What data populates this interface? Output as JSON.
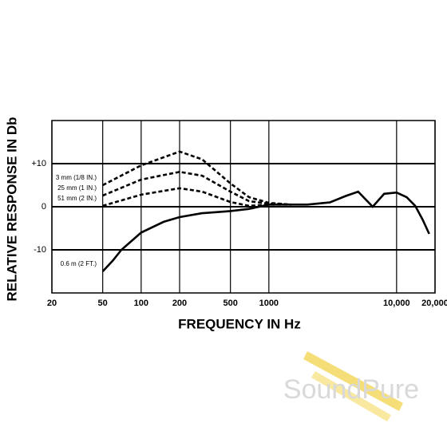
{
  "chart_data": {
    "type": "line",
    "x_label": "FREQUENCY IN Hz",
    "y_label": "RELATIVE RESPONSE IN Db",
    "xscale": "log",
    "xlim": [
      20,
      20000
    ],
    "xticks": [
      20,
      50,
      100,
      200,
      500,
      1000,
      {
        "value": 10000,
        "label": "10,000"
      },
      {
        "value": 20000,
        "label": "20,000"
      }
    ],
    "ylim": [
      -20,
      20
    ],
    "yticks": [
      -10,
      0,
      {
        "value": 10,
        "label": "+10"
      }
    ],
    "grid": true,
    "series": [
      {
        "name": "3 mm (1/8 IN.)",
        "color": "#000000",
        "dashed": true,
        "x": [
          50,
          100,
          200,
          300,
          500,
          700,
          1000,
          1500
        ],
        "values": [
          5,
          9.6,
          12.8,
          11,
          5.4,
          2.2,
          0.9,
          0.5
        ]
      },
      {
        "name": "25 mm (1 IN.)",
        "color": "#000000",
        "dashed": true,
        "x": [
          50,
          100,
          200,
          300,
          500,
          700,
          1000,
          1500
        ],
        "values": [
          2.6,
          6.3,
          8.1,
          7.2,
          3.5,
          1.3,
          0.7,
          0.5
        ]
      },
      {
        "name": "51 mm (2 IN.)",
        "color": "#000000",
        "dashed": true,
        "x": [
          50,
          100,
          200,
          300,
          500,
          700,
          1000,
          1500
        ],
        "values": [
          0.2,
          2.8,
          4.3,
          3.5,
          1.1,
          0.2,
          0.5,
          0.5
        ]
      },
      {
        "name": "0.6 m (2 FT.)",
        "color": "#000000",
        "dashed": false,
        "x": [
          50,
          60,
          70,
          100,
          150,
          200,
          300,
          500,
          700,
          1000,
          1500,
          2000,
          3000,
          4000,
          5000,
          6500,
          8000,
          10000,
          12000,
          14000,
          16000,
          18000
        ],
        "values": [
          -15,
          -12.5,
          -10,
          -6,
          -3.5,
          -2.4,
          -1.5,
          -1,
          -0.5,
          0.5,
          0.5,
          0.5,
          1,
          2.5,
          3.5,
          0,
          3,
          3.3,
          2.2,
          0.2,
          -3,
          -6.3
        ]
      }
    ]
  },
  "watermark": "SoundPure"
}
